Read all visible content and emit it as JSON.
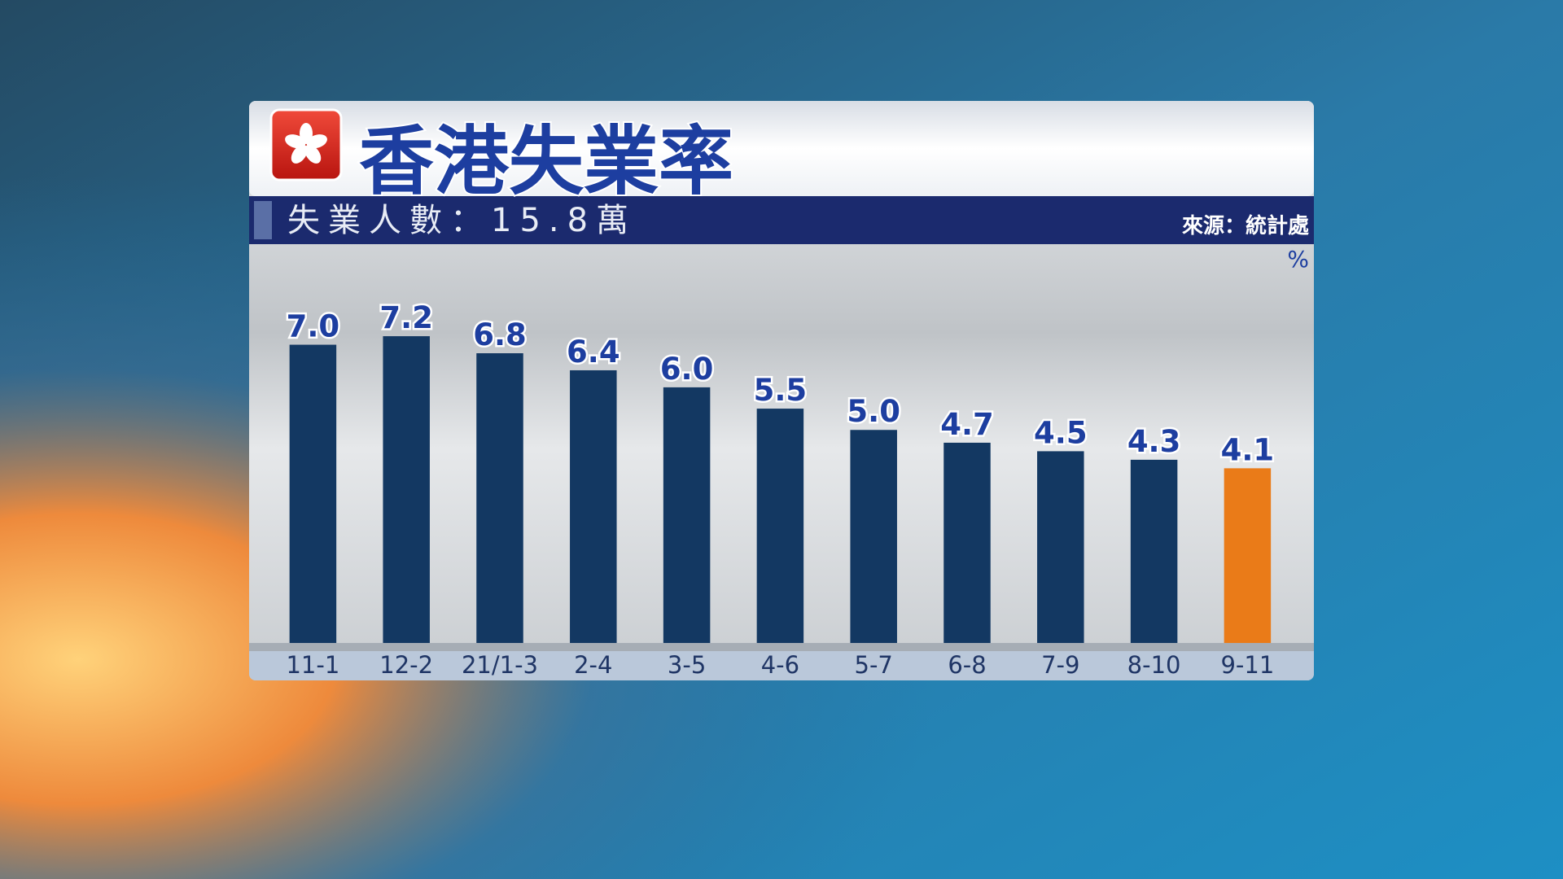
{
  "chart_data": {
    "type": "bar",
    "title": "香港失業率",
    "subtitle": "失業人數：15.8萬",
    "source": "來源：統計處",
    "unit_label": "%",
    "categories": [
      "11-1",
      "12-2",
      "21/1-3",
      "2-4",
      "3-5",
      "4-6",
      "5-7",
      "6-8",
      "7-9",
      "8-10",
      "9-11"
    ],
    "values": [
      7.0,
      7.2,
      6.8,
      6.4,
      6.0,
      5.5,
      5.0,
      4.7,
      4.5,
      4.3,
      4.1
    ],
    "value_labels": [
      "7.0",
      "7.2",
      "6.8",
      "6.4",
      "6.0",
      "5.5",
      "5.0",
      "4.7",
      "4.5",
      "4.3",
      "4.1"
    ],
    "colors": [
      "#133862",
      "#133862",
      "#133862",
      "#133862",
      "#133862",
      "#133862",
      "#133862",
      "#133862",
      "#133862",
      "#133862",
      "#ea7b18"
    ],
    "ylim": [
      0,
      9.36
    ]
  }
}
